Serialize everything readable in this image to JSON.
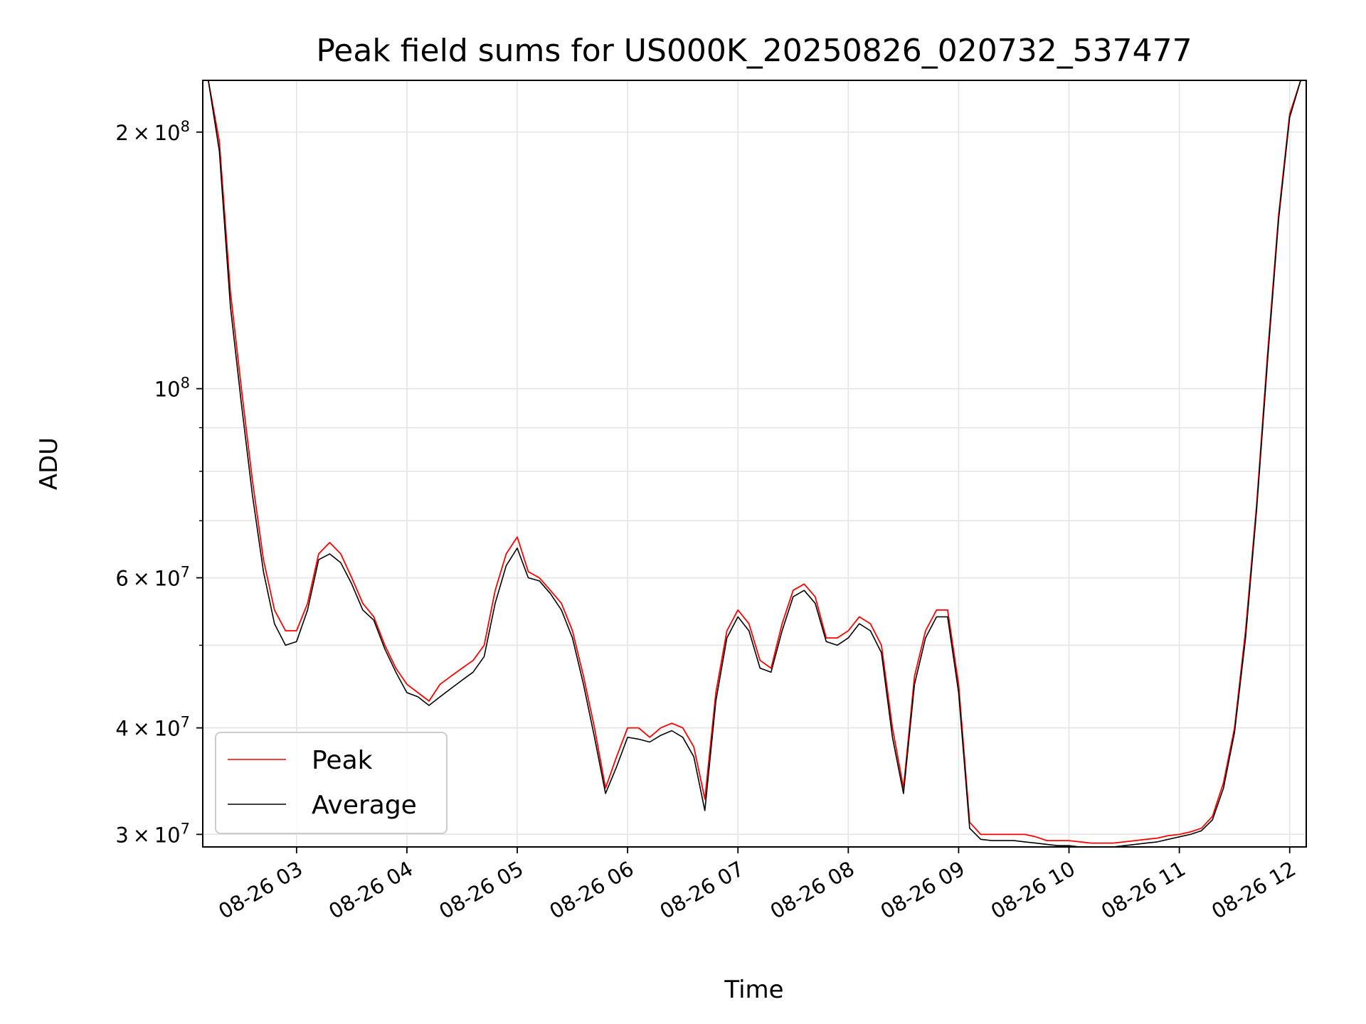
{
  "chart_data": {
    "type": "line",
    "title": "Peak field sums for US000K_20250826_020732_537477",
    "xlabel": "Time",
    "ylabel": "ADU",
    "yscale": "log",
    "grid": true,
    "legend_position": "lower-left",
    "xlim": [
      "2025-08-26 02:09",
      "2025-08-26 12:09"
    ],
    "ylim": [
      29000000,
      230000000
    ],
    "x_ticks": [
      {
        "value": "2025-08-26 03:00",
        "label": "08-26 03"
      },
      {
        "value": "2025-08-26 04:00",
        "label": "08-26 04"
      },
      {
        "value": "2025-08-26 05:00",
        "label": "08-26 05"
      },
      {
        "value": "2025-08-26 06:00",
        "label": "08-26 06"
      },
      {
        "value": "2025-08-26 07:00",
        "label": "08-26 07"
      },
      {
        "value": "2025-08-26 08:00",
        "label": "08-26 08"
      },
      {
        "value": "2025-08-26 09:00",
        "label": "08-26 09"
      },
      {
        "value": "2025-08-26 10:00",
        "label": "08-26 10"
      },
      {
        "value": "2025-08-26 11:00",
        "label": "08-26 11"
      },
      {
        "value": "2025-08-26 12:00",
        "label": "08-26 12"
      }
    ],
    "y_major_ticks": [
      {
        "value": 30000000,
        "mantissa": "3",
        "exponent": "7"
      },
      {
        "value": 40000000,
        "mantissa": "4",
        "exponent": "7"
      },
      {
        "value": 60000000,
        "mantissa": "6",
        "exponent": "7"
      },
      {
        "value": 100000000,
        "mantissa": "",
        "exponent": "8"
      },
      {
        "value": 200000000,
        "mantissa": "2",
        "exponent": "8"
      }
    ],
    "y_minor_ticks": [
      50000000,
      70000000,
      80000000,
      90000000
    ],
    "series": [
      {
        "name": "Peak",
        "color": "#ff0000",
        "x": [
          "2025-08-26 02:12",
          "2025-08-26 02:18",
          "2025-08-26 02:24",
          "2025-08-26 02:30",
          "2025-08-26 02:36",
          "2025-08-26 02:42",
          "2025-08-26 02:48",
          "2025-08-26 02:54",
          "2025-08-26 03:00",
          "2025-08-26 03:06",
          "2025-08-26 03:12",
          "2025-08-26 03:18",
          "2025-08-26 03:24",
          "2025-08-26 03:30",
          "2025-08-26 03:36",
          "2025-08-26 03:42",
          "2025-08-26 03:48",
          "2025-08-26 03:54",
          "2025-08-26 04:00",
          "2025-08-26 04:06",
          "2025-08-26 04:12",
          "2025-08-26 04:18",
          "2025-08-26 04:24",
          "2025-08-26 04:30",
          "2025-08-26 04:36",
          "2025-08-26 04:42",
          "2025-08-26 04:48",
          "2025-08-26 04:54",
          "2025-08-26 05:00",
          "2025-08-26 05:06",
          "2025-08-26 05:12",
          "2025-08-26 05:18",
          "2025-08-26 05:24",
          "2025-08-26 05:30",
          "2025-08-26 05:36",
          "2025-08-26 05:42",
          "2025-08-26 05:48",
          "2025-08-26 05:54",
          "2025-08-26 06:00",
          "2025-08-26 06:06",
          "2025-08-26 06:12",
          "2025-08-26 06:18",
          "2025-08-26 06:24",
          "2025-08-26 06:30",
          "2025-08-26 06:36",
          "2025-08-26 06:42",
          "2025-08-26 06:48",
          "2025-08-26 06:54",
          "2025-08-26 07:00",
          "2025-08-26 07:06",
          "2025-08-26 07:12",
          "2025-08-26 07:18",
          "2025-08-26 07:24",
          "2025-08-26 07:30",
          "2025-08-26 07:36",
          "2025-08-26 07:42",
          "2025-08-26 07:48",
          "2025-08-26 07:54",
          "2025-08-26 08:00",
          "2025-08-26 08:06",
          "2025-08-26 08:12",
          "2025-08-26 08:18",
          "2025-08-26 08:24",
          "2025-08-26 08:30",
          "2025-08-26 08:36",
          "2025-08-26 08:42",
          "2025-08-26 08:48",
          "2025-08-26 08:54",
          "2025-08-26 09:00",
          "2025-08-26 09:06",
          "2025-08-26 09:12",
          "2025-08-26 09:18",
          "2025-08-26 09:24",
          "2025-08-26 09:30",
          "2025-08-26 09:36",
          "2025-08-26 09:42",
          "2025-08-26 09:48",
          "2025-08-26 09:54",
          "2025-08-26 10:00",
          "2025-08-26 10:06",
          "2025-08-26 10:12",
          "2025-08-26 10:18",
          "2025-08-26 10:24",
          "2025-08-26 10:30",
          "2025-08-26 10:36",
          "2025-08-26 10:42",
          "2025-08-26 10:48",
          "2025-08-26 10:54",
          "2025-08-26 11:00",
          "2025-08-26 11:06",
          "2025-08-26 11:12",
          "2025-08-26 11:18",
          "2025-08-26 11:24",
          "2025-08-26 11:30",
          "2025-08-26 11:36",
          "2025-08-26 11:42",
          "2025-08-26 11:48",
          "2025-08-26 11:54",
          "2025-08-26 12:00",
          "2025-08-26 12:06"
        ],
        "values": [
          230000000,
          195000000,
          130000000,
          100000000,
          78000000,
          63000000,
          55000000,
          52000000,
          52000000,
          56000000,
          64000000,
          66000000,
          64000000,
          60000000,
          56000000,
          54000000,
          50000000,
          47000000,
          45000000,
          44000000,
          43000000,
          45000000,
          46000000,
          47000000,
          48000000,
          50000000,
          58000000,
          64000000,
          67000000,
          61000000,
          60000000,
          58000000,
          56000000,
          52000000,
          46000000,
          40000000,
          34000000,
          37000000,
          40000000,
          40000000,
          39000000,
          40000000,
          40500000,
          40000000,
          38000000,
          33000000,
          44000000,
          52000000,
          55000000,
          53000000,
          48000000,
          47000000,
          53000000,
          58000000,
          59000000,
          57000000,
          51000000,
          51000000,
          52000000,
          54000000,
          53000000,
          50000000,
          40000000,
          34000000,
          46000000,
          52000000,
          55000000,
          55000000,
          45000000,
          31000000,
          30000000,
          30000000,
          30000000,
          30000000,
          30000000,
          29800000,
          29500000,
          29500000,
          29500000,
          29400000,
          29300000,
          29300000,
          29300000,
          29400000,
          29500000,
          29600000,
          29700000,
          29900000,
          30000000,
          30200000,
          30500000,
          31500000,
          34500000,
          40000000,
          52000000,
          73000000,
          110000000,
          160000000,
          210000000,
          230000000
        ]
      },
      {
        "name": "Average",
        "color": "#000000",
        "x": [
          "2025-08-26 02:12",
          "2025-08-26 02:18",
          "2025-08-26 02:24",
          "2025-08-26 02:30",
          "2025-08-26 02:36",
          "2025-08-26 02:42",
          "2025-08-26 02:48",
          "2025-08-26 02:54",
          "2025-08-26 03:00",
          "2025-08-26 03:06",
          "2025-08-26 03:12",
          "2025-08-26 03:18",
          "2025-08-26 03:24",
          "2025-08-26 03:30",
          "2025-08-26 03:36",
          "2025-08-26 03:42",
          "2025-08-26 03:48",
          "2025-08-26 03:54",
          "2025-08-26 04:00",
          "2025-08-26 04:06",
          "2025-08-26 04:12",
          "2025-08-26 04:18",
          "2025-08-26 04:24",
          "2025-08-26 04:30",
          "2025-08-26 04:36",
          "2025-08-26 04:42",
          "2025-08-26 04:48",
          "2025-08-26 04:54",
          "2025-08-26 05:00",
          "2025-08-26 05:06",
          "2025-08-26 05:12",
          "2025-08-26 05:18",
          "2025-08-26 05:24",
          "2025-08-26 05:30",
          "2025-08-26 05:36",
          "2025-08-26 05:42",
          "2025-08-26 05:48",
          "2025-08-26 05:54",
          "2025-08-26 06:00",
          "2025-08-26 06:06",
          "2025-08-26 06:12",
          "2025-08-26 06:18",
          "2025-08-26 06:24",
          "2025-08-26 06:30",
          "2025-08-26 06:36",
          "2025-08-26 06:42",
          "2025-08-26 06:48",
          "2025-08-26 06:54",
          "2025-08-26 07:00",
          "2025-08-26 07:06",
          "2025-08-26 07:12",
          "2025-08-26 07:18",
          "2025-08-26 07:24",
          "2025-08-26 07:30",
          "2025-08-26 07:36",
          "2025-08-26 07:42",
          "2025-08-26 07:48",
          "2025-08-26 07:54",
          "2025-08-26 08:00",
          "2025-08-26 08:06",
          "2025-08-26 08:12",
          "2025-08-26 08:18",
          "2025-08-26 08:24",
          "2025-08-26 08:30",
          "2025-08-26 08:36",
          "2025-08-26 08:42",
          "2025-08-26 08:48",
          "2025-08-26 08:54",
          "2025-08-26 09:00",
          "2025-08-26 09:06",
          "2025-08-26 09:12",
          "2025-08-26 09:18",
          "2025-08-26 09:24",
          "2025-08-26 09:30",
          "2025-08-26 09:36",
          "2025-08-26 09:42",
          "2025-08-26 09:48",
          "2025-08-26 09:54",
          "2025-08-26 10:00",
          "2025-08-26 10:06",
          "2025-08-26 10:12",
          "2025-08-26 10:18",
          "2025-08-26 10:24",
          "2025-08-26 10:30",
          "2025-08-26 10:36",
          "2025-08-26 10:42",
          "2025-08-26 10:48",
          "2025-08-26 10:54",
          "2025-08-26 11:00",
          "2025-08-26 11:06",
          "2025-08-26 11:12",
          "2025-08-26 11:18",
          "2025-08-26 11:24",
          "2025-08-26 11:30",
          "2025-08-26 11:36",
          "2025-08-26 11:42",
          "2025-08-26 11:48",
          "2025-08-26 11:54",
          "2025-08-26 12:00",
          "2025-08-26 12:06"
        ],
        "values": [
          230000000,
          190000000,
          125000000,
          96000000,
          75000000,
          61000000,
          53000000,
          50000000,
          50500000,
          55000000,
          63000000,
          64000000,
          62500000,
          59000000,
          55000000,
          53500000,
          49500000,
          46500000,
          44000000,
          43500000,
          42500000,
          43500000,
          44500000,
          45500000,
          46500000,
          48500000,
          56000000,
          62000000,
          65000000,
          60000000,
          59500000,
          57500000,
          55000000,
          51000000,
          45000000,
          39000000,
          33500000,
          36000000,
          39000000,
          38800000,
          38500000,
          39200000,
          39700000,
          39000000,
          37000000,
          32000000,
          43000000,
          51000000,
          54000000,
          52000000,
          47000000,
          46500000,
          52000000,
          57000000,
          58000000,
          56000000,
          50500000,
          50000000,
          51000000,
          53000000,
          52000000,
          49000000,
          39000000,
          33500000,
          45000000,
          51000000,
          54000000,
          54000000,
          44000000,
          30500000,
          29600000,
          29500000,
          29500000,
          29500000,
          29400000,
          29300000,
          29200000,
          29100000,
          29100000,
          29000000,
          29000000,
          29000000,
          29000000,
          29100000,
          29200000,
          29300000,
          29400000,
          29600000,
          29800000,
          30000000,
          30300000,
          31200000,
          34000000,
          39500000,
          51000000,
          72000000,
          108000000,
          158000000,
          208000000,
          230000000
        ]
      }
    ]
  }
}
